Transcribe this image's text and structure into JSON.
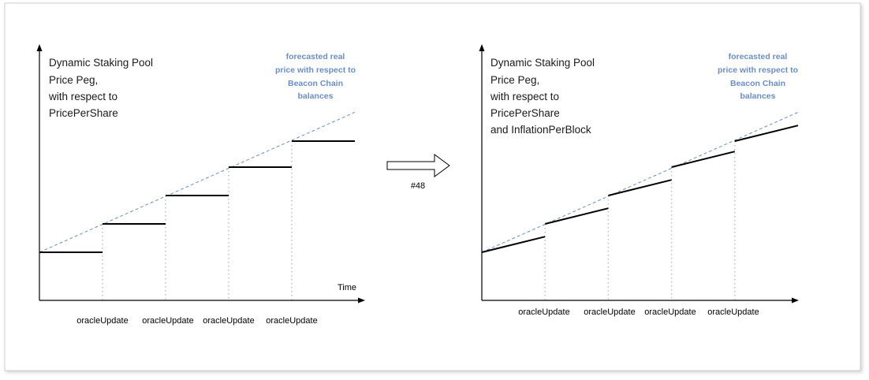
{
  "colors": {
    "forecast_line": "#6c8ebf",
    "forecast_text": "#6c8ebf",
    "price_line": "#000000",
    "grid_dotted": "#bfbfbf",
    "frame_border": "#d0d0d0"
  },
  "left_panel": {
    "title_lines": [
      "Dynamic Staking Pool",
      "Price Peg,",
      "with respect to",
      "PricePerShare"
    ],
    "forecast_lines": [
      "forecasted real",
      "price with respect to",
      "Beacon Chain",
      "balances"
    ],
    "x_axis_label": "Time",
    "tick_labels": [
      "oracleUpdate",
      "oracleUpdate",
      "oracleUpdate",
      "oracleUpdate"
    ]
  },
  "arrow": {
    "label": "#48"
  },
  "right_panel": {
    "title_lines": [
      "Dynamic Staking Pool",
      "Price Peg,",
      "with respect to",
      "PricePerShare",
      "and InflationPerBlock"
    ],
    "forecast_lines": [
      "forecasted real",
      "price with respect to",
      "Beacon Chain",
      "balances"
    ],
    "x_axis_label": "",
    "tick_labels": [
      "oracleUpdate",
      "oracleUpdate",
      "oracleUpdate",
      "oracleUpdate"
    ]
  },
  "chart_data": [
    {
      "type": "line",
      "title": "Dynamic Staking Pool Price Peg, with respect to PricePerShare",
      "xlabel": "Time",
      "ylabel": "",
      "update_points": [
        1,
        2,
        3,
        4
      ],
      "series": [
        {
          "name": "forecasted real price with respect to Beacon Chain balances",
          "style": "dashed",
          "x": [
            0,
            5
          ],
          "y": [
            1.0,
            3.96
          ]
        },
        {
          "style": "step",
          "segments": [
            {
              "x": [
                0,
                1
              ],
              "y": [
                1.0,
                1.0
              ]
            },
            {
              "x": [
                1,
                2
              ],
              "y": [
                1.6,
                1.6
              ]
            },
            {
              "x": [
                2,
                3
              ],
              "y": [
                2.2,
                2.2
              ]
            },
            {
              "x": [
                3,
                4
              ],
              "y": [
                2.8,
                2.8
              ]
            },
            {
              "x": [
                4,
                5
              ],
              "y": [
                3.35,
                3.35
              ]
            }
          ]
        }
      ]
    },
    {
      "type": "line",
      "title": "Dynamic Staking Pool Price Peg, with respect to PricePerShare and InflationPerBlock",
      "xlabel": "",
      "ylabel": "",
      "update_points": [
        1,
        2,
        3,
        4
      ],
      "series": [
        {
          "name": "forecasted real price with respect to Beacon Chain balances",
          "style": "dashed",
          "x": [
            0,
            5
          ],
          "y": [
            1.0,
            3.96
          ]
        },
        {
          "style": "segments",
          "segments": [
            {
              "x": [
                0,
                1
              ],
              "y": [
                1.0,
                1.33
              ]
            },
            {
              "x": [
                1,
                2
              ],
              "y": [
                1.6,
                1.93
              ]
            },
            {
              "x": [
                2,
                3
              ],
              "y": [
                2.2,
                2.53
              ]
            },
            {
              "x": [
                3,
                4
              ],
              "y": [
                2.8,
                3.13
              ]
            },
            {
              "x": [
                4,
                5
              ],
              "y": [
                3.35,
                3.68
              ]
            }
          ]
        }
      ]
    }
  ]
}
